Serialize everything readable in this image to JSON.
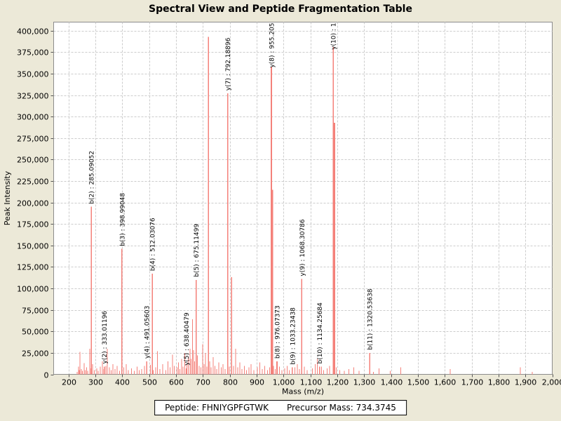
{
  "title": "Spectral View and Peptide Fragmentation Table",
  "footer": {
    "peptide_label": "Peptide: FHNIYGPFGTWK",
    "precursor_label": "Precursor Mass: 734.3745"
  },
  "chart_data": {
    "type": "bar",
    "title": "Spectral View and Peptide Fragmentation Table",
    "xlabel": "Mass (m/z)",
    "ylabel": "Peak Intensity",
    "xlim": [
      145,
      2000
    ],
    "ylim": [
      0,
      410000
    ],
    "grid": true,
    "legend": "none",
    "x_ticks": {
      "values": [
        200,
        300,
        400,
        500,
        600,
        700,
        800,
        900,
        1000,
        1100,
        1200,
        1300,
        1400,
        1500,
        1600,
        1700,
        1800,
        1900,
        2000
      ],
      "labels": [
        "200",
        "300",
        "400",
        "500",
        "600",
        "700",
        "800",
        "900",
        "1,000",
        "1,100",
        "1,200",
        "1,300",
        "1,400",
        "1,500",
        "1,600",
        "1,700",
        "1,800",
        "1,900",
        "2,000"
      ]
    },
    "y_ticks": {
      "values": [
        0,
        25000,
        50000,
        75000,
        100000,
        125000,
        150000,
        175000,
        200000,
        225000,
        250000,
        275000,
        300000,
        325000,
        350000,
        375000,
        400000
      ],
      "labels": [
        "0",
        "25,000",
        "50,000",
        "75,000",
        "100,000",
        "125,000",
        "150,000",
        "175,000",
        "200,000",
        "225,000",
        "250,000",
        "275,000",
        "300,000",
        "325,000",
        "350,000",
        "375,000",
        "400,000"
      ]
    },
    "colors": {
      "peak": "#f4817a",
      "grid": "#cccccc",
      "plot_border": "#8c8c8c",
      "axis": "#555555",
      "background": "#ece9d8",
      "plot_background": "#ffffff",
      "text": "#000000"
    },
    "labeled_peaks": [
      {
        "ion": "b(2)",
        "mz": 285.09052,
        "intensity": 195000,
        "label": "b(2) : 285.09052",
        "label_clipped": false
      },
      {
        "ion": "y(2)",
        "mz": 333.01196,
        "intensity": 9000,
        "label": "y(2) : 333.01196",
        "label_clipped": false
      },
      {
        "ion": "b(3)",
        "mz": 398.99048,
        "intensity": 146000,
        "label": "b(3) : 398.99048",
        "label_clipped": false
      },
      {
        "ion": "y(4)",
        "mz": 491.05603,
        "intensity": 15000,
        "label": "y(4) : 491.05603",
        "label_clipped": false
      },
      {
        "ion": "b(4)",
        "mz": 512.03076,
        "intensity": 117000,
        "label": "b(4) : 512.03076",
        "label_clipped": false
      },
      {
        "ion": "y(5)",
        "mz": 638.40479,
        "intensity": 7000,
        "label": "y(5) : 638.40479",
        "label_clipped": false
      },
      {
        "ion": "b(5)",
        "mz": 675.11499,
        "intensity": 110000,
        "label": "b(5) : 675.11499",
        "label_clipped": false
      },
      {
        "ion": "y(7)",
        "mz": 792.18896,
        "intensity": 327000,
        "label": "y(7) : 792.18896",
        "label_clipped": false
      },
      {
        "ion": "y(8)",
        "mz": 955.205,
        "intensity": 358000,
        "label": "y(8) : 955.205",
        "label_clipped": true
      },
      {
        "ion": "b(8)",
        "mz": 976.07373,
        "intensity": 15000,
        "label": "b(8) : 976.07373",
        "label_clipped": false
      },
      {
        "ion": "b(9)",
        "mz": 1033.23438,
        "intensity": 8000,
        "label": "b(9) : 1033.23438",
        "label_clipped": false
      },
      {
        "ion": "y(9)",
        "mz": 1068.30786,
        "intensity": 111000,
        "label": "y(9) : 1068.30786",
        "label_clipped": false
      },
      {
        "ion": "b(10)",
        "mz": 1134.25684,
        "intensity": 9000,
        "label": "b(10) : 1134.25684",
        "label_clipped": false
      },
      {
        "ion": "y(10)",
        "mz": 1185,
        "intensity": 381000,
        "label": "y(10) : 1",
        "label_clipped": true
      },
      {
        "ion": "b(11)",
        "mz": 1320.53638,
        "intensity": 25000,
        "label": "b(11) : 1320.53638",
        "label_clipped": false
      }
    ],
    "unlabeled_major_peaks": [
      [
        721,
        393000
      ],
      [
        807,
        113000
      ],
      [
        960,
        215000
      ],
      [
        1190,
        293000
      ]
    ],
    "noise_peaks": [
      [
        232,
        3000
      ],
      [
        237,
        9000
      ],
      [
        240,
        5000
      ],
      [
        243,
        26000
      ],
      [
        248,
        6000
      ],
      [
        252,
        4000
      ],
      [
        258,
        13000
      ],
      [
        263,
        5000
      ],
      [
        268,
        8000
      ],
      [
        272,
        4000
      ],
      [
        279,
        30000
      ],
      [
        283,
        7000
      ],
      [
        290,
        12000
      ],
      [
        296,
        5000
      ],
      [
        305,
        7000
      ],
      [
        311,
        4000
      ],
      [
        318,
        9000
      ],
      [
        326,
        15000
      ],
      [
        332,
        6000
      ],
      [
        339,
        10000
      ],
      [
        345,
        30000
      ],
      [
        352,
        8000
      ],
      [
        359,
        5000
      ],
      [
        366,
        12000
      ],
      [
        373,
        6000
      ],
      [
        381,
        10000
      ],
      [
        390,
        4000
      ],
      [
        406,
        8000
      ],
      [
        415,
        12000
      ],
      [
        423,
        5000
      ],
      [
        434,
        7000
      ],
      [
        445,
        4000
      ],
      [
        455,
        9000
      ],
      [
        463,
        5000
      ],
      [
        472,
        6000
      ],
      [
        483,
        10000
      ],
      [
        505,
        11000
      ],
      [
        516,
        5000
      ],
      [
        524,
        8000
      ],
      [
        531,
        27000
      ],
      [
        540,
        6000
      ],
      [
        551,
        12000
      ],
      [
        562,
        5000
      ],
      [
        570,
        15000
      ],
      [
        578,
        8000
      ],
      [
        587,
        23000
      ],
      [
        594,
        10000
      ],
      [
        604,
        8000
      ],
      [
        609,
        14000
      ],
      [
        615,
        6000
      ],
      [
        621,
        18000
      ],
      [
        627,
        9000
      ],
      [
        633,
        25000
      ],
      [
        641,
        12000
      ],
      [
        646,
        20000
      ],
      [
        652,
        30000
      ],
      [
        656,
        18000
      ],
      [
        661,
        64000
      ],
      [
        665,
        28000
      ],
      [
        669,
        15000
      ],
      [
        680,
        22000
      ],
      [
        686,
        10000
      ],
      [
        693,
        8000
      ],
      [
        699,
        35000
      ],
      [
        704,
        12000
      ],
      [
        710,
        25000
      ],
      [
        715,
        9000
      ],
      [
        726,
        15000
      ],
      [
        731,
        8000
      ],
      [
        738,
        20000
      ],
      [
        745,
        10000
      ],
      [
        752,
        6000
      ],
      [
        760,
        14000
      ],
      [
        768,
        8000
      ],
      [
        775,
        12000
      ],
      [
        783,
        6000
      ],
      [
        798,
        9000
      ],
      [
        814,
        10000
      ],
      [
        822,
        30000
      ],
      [
        830,
        8000
      ],
      [
        838,
        14000
      ],
      [
        846,
        6000
      ],
      [
        855,
        10000
      ],
      [
        863,
        5000
      ],
      [
        872,
        8000
      ],
      [
        880,
        12000
      ],
      [
        890,
        5000
      ],
      [
        903,
        8000
      ],
      [
        912,
        14000
      ],
      [
        921,
        6000
      ],
      [
        930,
        10000
      ],
      [
        941,
        5000
      ],
      [
        948,
        8000
      ],
      [
        963,
        10000
      ],
      [
        970,
        6000
      ],
      [
        985,
        9000
      ],
      [
        994,
        5000
      ],
      [
        1005,
        7000
      ],
      [
        1014,
        10000
      ],
      [
        1022,
        5000
      ],
      [
        1042,
        8000
      ],
      [
        1051,
        12000
      ],
      [
        1060,
        6000
      ],
      [
        1078,
        9000
      ],
      [
        1088,
        5000
      ],
      [
        1108,
        7000
      ],
      [
        1118,
        12000
      ],
      [
        1126,
        18000
      ],
      [
        1142,
        9000
      ],
      [
        1150,
        5000
      ],
      [
        1163,
        7000
      ],
      [
        1172,
        10000
      ],
      [
        1197,
        8000
      ],
      [
        1210,
        5000
      ],
      [
        1226,
        4000
      ],
      [
        1243,
        6000
      ],
      [
        1262,
        8000
      ],
      [
        1281,
        4000
      ],
      [
        1335,
        3000
      ],
      [
        1356,
        7000
      ],
      [
        1397,
        4000
      ],
      [
        1436,
        8000
      ],
      [
        1621,
        6000
      ],
      [
        1881,
        8000
      ],
      [
        1925,
        3000
      ]
    ]
  }
}
